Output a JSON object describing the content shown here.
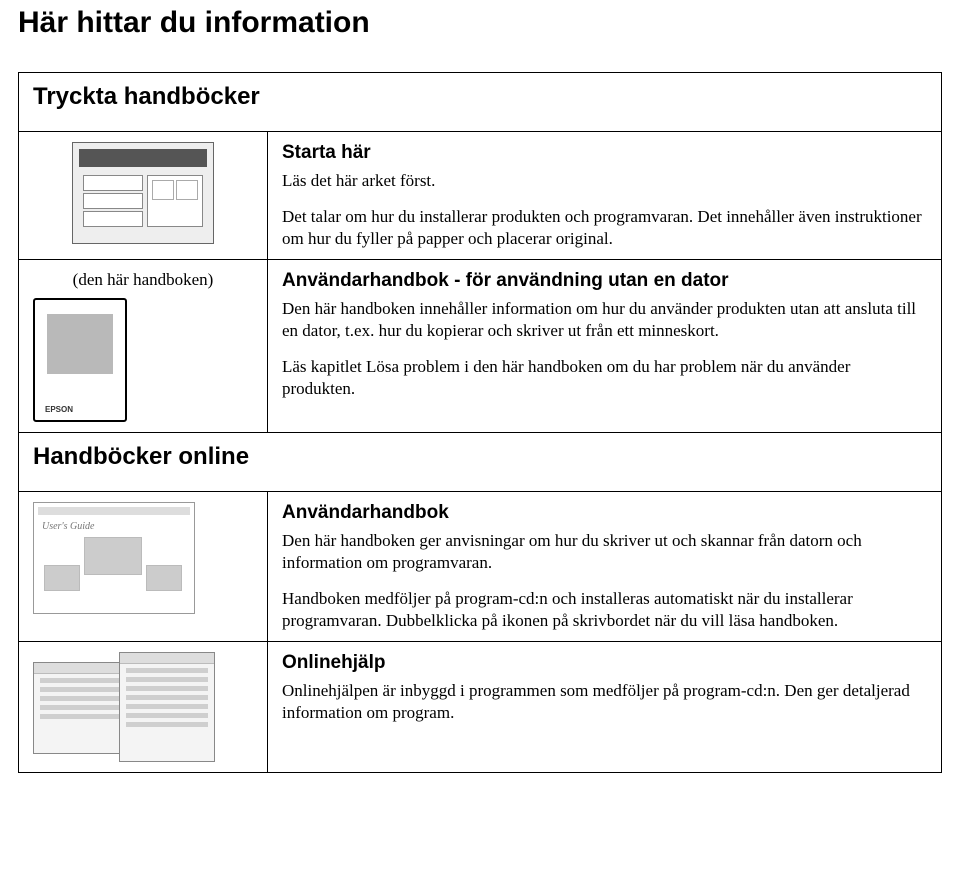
{
  "page_title": "Här hittar du information",
  "sections": {
    "printed": "Tryckta handböcker",
    "online": "Handböcker online"
  },
  "rows": {
    "start": {
      "title": "Starta här",
      "p1": "Läs det här arket först.",
      "p2": "Det talar om hur du installerar produkten och programvaran. Det innehåller även instruktioner om hur du fyller på papper och placerar original."
    },
    "userguide_nopc": {
      "left_caption": "(den här handboken)",
      "brand": "EPSON",
      "title": "Användarhandbok - för användning utan en dator",
      "p1": "Den här handboken innehåller information om hur du använder produkten utan att ansluta till en dator, t.ex. hur du kopierar och skriver ut från ett minneskort.",
      "p2": "Läs kapitlet Lösa problem i den här handboken om du har problem när du använder produkten."
    },
    "userguide": {
      "thumb_label": "User's Guide",
      "title": "Användarhandbok",
      "p1": "Den här handboken ger anvisningar om hur du skriver ut och skannar från datorn och information om programvaran.",
      "p2": "Handboken medföljer på program-cd:n och installeras automatiskt när du installerar programvaran. Dubbelklicka på ikonen på skrivbordet när du vill läsa handboken."
    },
    "onlinehelp": {
      "title": "Onlinehjälp",
      "p1": "Onlinehjälpen är inbyggd i programmen som medföljer på program-cd:n. Den ger detaljerad information om program."
    }
  }
}
